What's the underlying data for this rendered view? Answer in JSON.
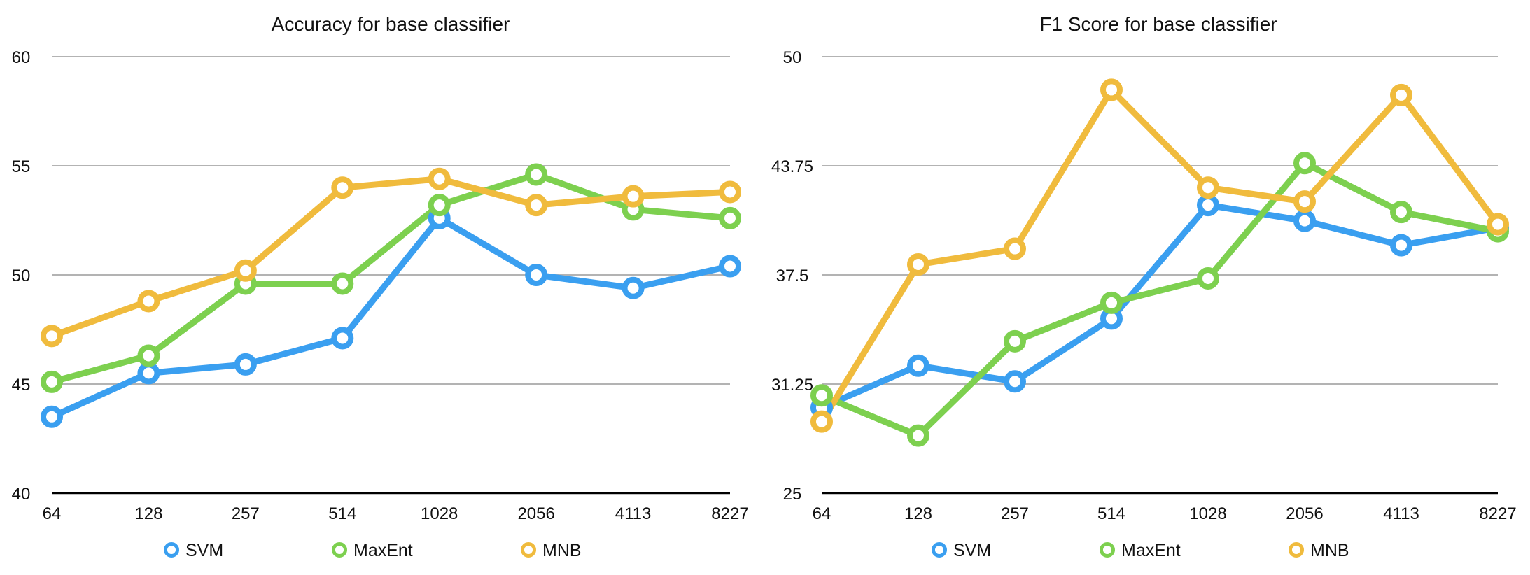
{
  "chart_data": [
    {
      "type": "line",
      "title": "Accuracy for base classifier",
      "xlabel": "",
      "ylabel": "",
      "categories": [
        "64",
        "128",
        "257",
        "514",
        "1028",
        "2056",
        "4113",
        "8227"
      ],
      "y_ticks": [
        "40",
        "45",
        "50",
        "55",
        "60"
      ],
      "ylim": [
        40,
        60
      ],
      "grid": true,
      "legend_position": "bottom",
      "series": [
        {
          "name": "SVM",
          "color": "#3a9ff0",
          "values": [
            43.5,
            45.5,
            45.9,
            47.1,
            52.6,
            50.0,
            49.4,
            50.4
          ]
        },
        {
          "name": "MaxEnt",
          "color": "#7dd04f",
          "values": [
            45.1,
            46.3,
            49.6,
            49.6,
            53.2,
            54.6,
            53.0,
            52.6
          ]
        },
        {
          "name": "MNB",
          "color": "#f0bb3d",
          "values": [
            47.2,
            48.8,
            50.2,
            54.0,
            54.4,
            53.2,
            53.6,
            53.8
          ]
        }
      ]
    },
    {
      "type": "line",
      "title": "F1 Score for base classifier",
      "xlabel": "",
      "ylabel": "",
      "categories": [
        "64",
        "128",
        "257",
        "514",
        "1028",
        "2056",
        "4113",
        "8227"
      ],
      "y_ticks": [
        "25",
        "31.25",
        "37.5",
        "43.75",
        "50"
      ],
      "ylim": [
        25,
        50
      ],
      "grid": true,
      "legend_position": "bottom",
      "series": [
        {
          "name": "SVM",
          "color": "#3a9ff0",
          "values": [
            29.9,
            32.3,
            31.4,
            35.0,
            41.5,
            40.6,
            39.2,
            40.2
          ]
        },
        {
          "name": "MaxEnt",
          "color": "#7dd04f",
          "values": [
            30.6,
            28.3,
            33.7,
            35.9,
            37.3,
            43.9,
            41.1,
            40.0
          ]
        },
        {
          "name": "MNB",
          "color": "#f0bb3d",
          "values": [
            29.1,
            38.1,
            39.0,
            48.1,
            42.5,
            41.7,
            47.8,
            40.4
          ]
        }
      ]
    }
  ]
}
